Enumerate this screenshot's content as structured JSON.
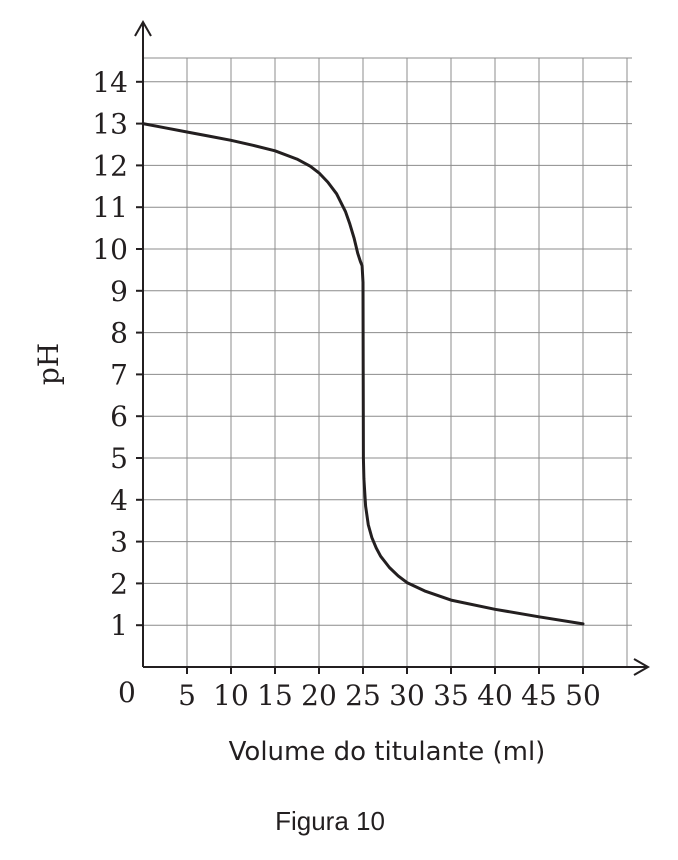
{
  "chart_data": {
    "type": "line",
    "xlabel": "Volume do titulante (ml)",
    "ylabel": "pH",
    "origin_label": "0",
    "xlim": [
      0,
      55
    ],
    "ylim": [
      0,
      14.5
    ],
    "x_ticks": [
      5,
      10,
      15,
      20,
      25,
      30,
      35,
      40,
      45,
      50
    ],
    "y_ticks": [
      1,
      2,
      3,
      4,
      5,
      6,
      7,
      8,
      9,
      10,
      11,
      12,
      13,
      14
    ],
    "grid": true,
    "series": [
      {
        "x": [
          0,
          2.5,
          5,
          7.5,
          10,
          12.5,
          15,
          17.5,
          19,
          20,
          21,
          22,
          23,
          23.5,
          24,
          24.4,
          24.7,
          24.9,
          25,
          25.02,
          25.05,
          25.1,
          25.3,
          25.6,
          26,
          26.5,
          27,
          28,
          29,
          30,
          32,
          35,
          40,
          45,
          50
        ],
        "y": [
          13.0,
          12.9,
          12.8,
          12.7,
          12.6,
          12.48,
          12.35,
          12.15,
          11.98,
          11.82,
          11.6,
          11.32,
          10.9,
          10.6,
          10.25,
          9.9,
          9.7,
          9.6,
          9.2,
          7.0,
          5.0,
          4.5,
          3.85,
          3.4,
          3.1,
          2.85,
          2.65,
          2.38,
          2.18,
          2.02,
          1.82,
          1.6,
          1.38,
          1.2,
          1.03
        ]
      }
    ]
  },
  "caption": "Figura 10"
}
